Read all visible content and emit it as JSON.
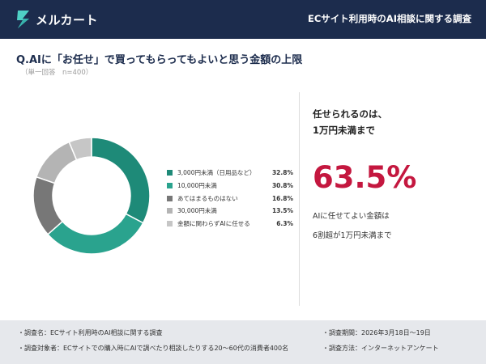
{
  "header": {
    "brand": "メルカート",
    "title": "ECサイト利用時のAI相談に関する調査",
    "logo_icon": "mercart-logo-icon",
    "background": "#1c2c4d"
  },
  "question": {
    "text": "Q.AIに「お任せ」で買ってもらってもよいと思う金額の上限",
    "note": "（単一回答　n=400）"
  },
  "chart_data": {
    "type": "pie",
    "donut": true,
    "categories": [
      "3,000円未満（日用品など）",
      "10,000円未満",
      "あてはまるものはない",
      "30,000円未満",
      "金額に関わらずAIに任せる"
    ],
    "values": [
      32.8,
      30.8,
      16.8,
      13.5,
      6.3
    ],
    "value_labels": [
      "32.8%",
      "30.8%",
      "16.8%",
      "13.5%",
      "6.3%"
    ],
    "colors": [
      "#1e8a78",
      "#2aa38e",
      "#777777",
      "#b4b4b4",
      "#c6c6c6"
    ],
    "start_angle_deg": 0,
    "legend_position": "right"
  },
  "callout": {
    "heading_line1": "任せられるのは、",
    "heading_line2": "1万円未満まで",
    "percent": "63.5%",
    "body_line1": "AIに任せてよい金額は",
    "body_line2": "6割超が1万円未満まで",
    "accent_color": "#c4173f"
  },
  "footer": {
    "survey_name": "・調査名：ECサイト利用時のAI相談に関する調査",
    "survey_period": "・調査期間：2026年3月18日～19日",
    "survey_target": "・調査対象者：ECサイトでの購入時にAIで調べたり相談したりする20～60代の消費者400名",
    "survey_method": "・調査方法：インターネットアンケート"
  }
}
